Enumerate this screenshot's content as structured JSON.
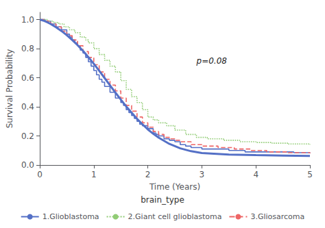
{
  "chart_data": {
    "type": "line",
    "xlabel": "Time (Years)",
    "ylabel": "Survival Probability",
    "xlim": [
      0,
      5
    ],
    "ylim": [
      0.0,
      1.05
    ],
    "xticks": [
      0,
      1,
      2,
      3,
      4,
      5
    ],
    "yticks": [
      {
        "value": 0,
        "label": "0.0"
      },
      0.2,
      0.4,
      0.6,
      0.8,
      {
        "value": 1,
        "label": "1.0"
      }
    ],
    "grid": false,
    "legend": "bottom",
    "legend_title": "brain_type",
    "annotations": [
      {
        "text": "p=0.08",
        "x": 2.9,
        "y": 0.68
      }
    ],
    "series": [
      {
        "name": "1.Glioblastoma",
        "type": "step",
        "color": "#5470c6",
        "line_style": "solid",
        "x": [
          0.0,
          0.1,
          0.2,
          0.3,
          0.4,
          0.5,
          0.55,
          0.6,
          0.65,
          0.7,
          0.75,
          0.8,
          0.85,
          0.9,
          0.95,
          1.0,
          1.05,
          1.1,
          1.15,
          1.2,
          1.3,
          1.4,
          1.5,
          1.55,
          1.6,
          1.65,
          1.7,
          1.75,
          1.8,
          1.85,
          1.9,
          2.0,
          2.1,
          2.15,
          2.2,
          2.3,
          2.4,
          2.5,
          2.6,
          2.7,
          2.8,
          3.0,
          3.2,
          3.5,
          3.8,
          4.0,
          4.3,
          4.7,
          5.0
        ],
        "values": [
          1.0,
          0.99,
          0.97,
          0.95,
          0.93,
          0.9,
          0.88,
          0.86,
          0.84,
          0.82,
          0.79,
          0.77,
          0.74,
          0.71,
          0.68,
          0.65,
          0.62,
          0.59,
          0.57,
          0.54,
          0.5,
          0.46,
          0.43,
          0.41,
          0.38,
          0.36,
          0.34,
          0.32,
          0.3,
          0.28,
          0.27,
          0.25,
          0.22,
          0.21,
          0.2,
          0.18,
          0.17,
          0.16,
          0.14,
          0.13,
          0.12,
          0.11,
          0.11,
          0.1,
          0.09,
          0.09,
          0.09,
          0.085,
          0.08
        ]
      },
      {
        "type": "line",
        "color": "#5470c6",
        "line_style": "solid",
        "x": [
          0.0,
          0.05,
          0.1,
          0.15,
          0.2,
          0.3,
          0.4,
          0.5,
          0.6,
          0.7,
          0.8,
          0.9,
          1.0,
          1.1,
          1.2,
          1.3,
          1.4,
          1.5,
          1.6,
          1.7,
          1.8,
          1.9,
          2.0,
          2.1,
          2.2,
          2.4,
          2.6,
          2.8,
          3.0,
          3.5,
          4.0,
          4.5,
          5.0
        ],
        "values": [
          1.0,
          0.995,
          0.988,
          0.98,
          0.97,
          0.948,
          0.922,
          0.893,
          0.86,
          0.824,
          0.785,
          0.742,
          0.696,
          0.648,
          0.598,
          0.548,
          0.498,
          0.45,
          0.403,
          0.36,
          0.318,
          0.28,
          0.245,
          0.215,
          0.188,
          0.145,
          0.115,
          0.095,
          0.082,
          0.072,
          0.068,
          0.065,
          0.062
        ]
      },
      {
        "name": "2.Giant cell glioblastoma",
        "type": "step",
        "color": "#91cc75",
        "line_style": "dotted",
        "x": [
          0.0,
          0.15,
          0.25,
          0.35,
          0.45,
          0.55,
          0.65,
          0.75,
          0.85,
          0.9,
          1.0,
          1.1,
          1.2,
          1.3,
          1.4,
          1.5,
          1.6,
          1.7,
          1.8,
          1.9,
          2.0,
          2.1,
          2.2,
          2.35,
          2.5,
          2.7,
          2.9,
          3.1,
          3.4,
          3.7,
          4.0,
          4.3,
          4.6,
          5.0
        ],
        "values": [
          1.0,
          0.99,
          0.98,
          0.97,
          0.95,
          0.93,
          0.91,
          0.88,
          0.86,
          0.84,
          0.8,
          0.76,
          0.72,
          0.68,
          0.64,
          0.58,
          0.52,
          0.47,
          0.43,
          0.38,
          0.33,
          0.31,
          0.29,
          0.27,
          0.24,
          0.21,
          0.19,
          0.18,
          0.17,
          0.16,
          0.155,
          0.15,
          0.145,
          0.14
        ]
      },
      {
        "name": "3.Gliosarcoma",
        "type": "step",
        "color": "#ee6666",
        "line_style": "dashed",
        "x": [
          0.0,
          0.1,
          0.2,
          0.3,
          0.4,
          0.5,
          0.6,
          0.7,
          0.8,
          0.9,
          1.0,
          1.1,
          1.2,
          1.3,
          1.4,
          1.5,
          1.6,
          1.7,
          1.8,
          1.9,
          2.0,
          2.1,
          2.2,
          2.3,
          2.4,
          2.5,
          2.6,
          2.8,
          3.0,
          3.3,
          3.6,
          3.9,
          4.2,
          4.6,
          5.0
        ],
        "values": [
          1.0,
          0.99,
          0.97,
          0.95,
          0.92,
          0.89,
          0.86,
          0.82,
          0.78,
          0.74,
          0.69,
          0.64,
          0.59,
          0.55,
          0.51,
          0.46,
          0.41,
          0.37,
          0.33,
          0.29,
          0.26,
          0.23,
          0.21,
          0.19,
          0.18,
          0.17,
          0.16,
          0.14,
          0.13,
          0.12,
          0.11,
          0.1,
          0.09,
          0.085,
          0.08
        ]
      }
    ]
  }
}
